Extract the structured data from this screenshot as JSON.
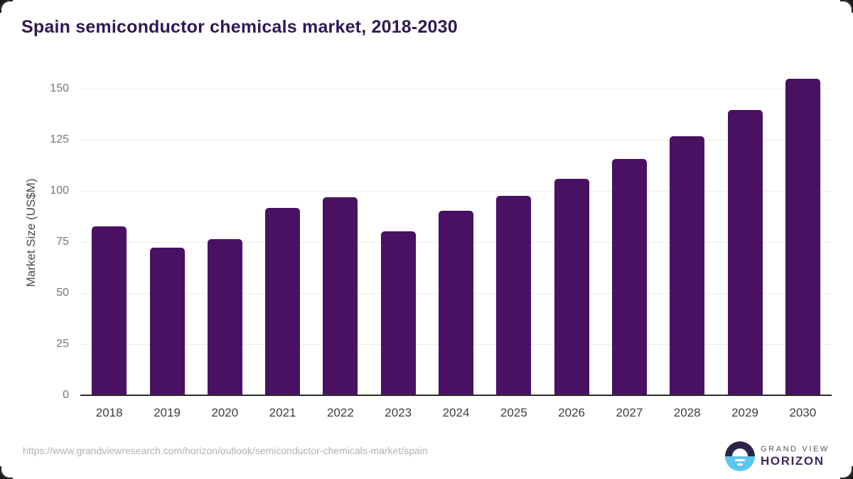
{
  "title": "Spain semiconductor chemicals market, 2018-2030",
  "chart_data": {
    "type": "bar",
    "categories": [
      "2018",
      "2019",
      "2020",
      "2021",
      "2022",
      "2023",
      "2024",
      "2025",
      "2026",
      "2027",
      "2028",
      "2029",
      "2030"
    ],
    "values": [
      82.7,
      72.2,
      76.2,
      91.5,
      96.7,
      80.3,
      90.1,
      97.5,
      105.9,
      115.4,
      126.5,
      139.5,
      154.9
    ],
    "title": "Spain semiconductor chemicals market, 2018-2030",
    "xlabel": "",
    "ylabel": "Market Size (US$M)",
    "ylim": [
      0,
      150
    ],
    "yticks": [
      0,
      25,
      50,
      75,
      100,
      125,
      150
    ],
    "grid": true,
    "legend": "none",
    "bar_color": "#4a1061"
  },
  "footer": {
    "source_url": "https://www.grandviewresearch.com/horizon/outlook/semiconductor-chemicals-market/spain",
    "logo": {
      "line1": "GRAND VIEW",
      "line2": "HORIZON"
    }
  },
  "colors": {
    "title": "#2e1a54",
    "bar": "#4a1061",
    "gridline": "#ececec",
    "axis": "#2b2b2b",
    "tick_text": "#767676",
    "year_text": "#3d3d3d",
    "url_text": "#b1b1b1",
    "logo_dark": "#2d2248",
    "logo_blue": "#5cc5f1"
  }
}
